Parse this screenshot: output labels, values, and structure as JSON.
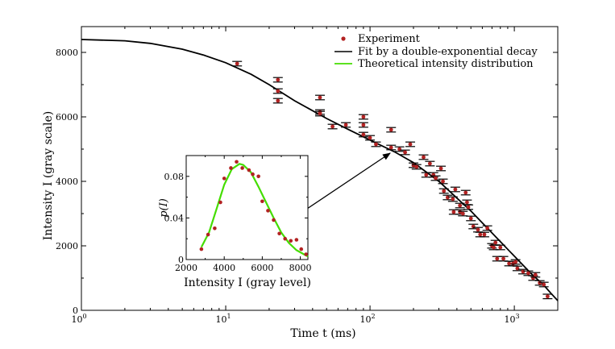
{
  "chart_data": [
    {
      "type": "scatter",
      "xscale": "log",
      "title": "",
      "xlabel": "Time t (ms)",
      "ylabel": "Intensity I (gray scale)",
      "xlim": [
        1,
        2000
      ],
      "ylim": [
        0,
        8800
      ],
      "xticks": [
        {
          "value": 1,
          "base": "10",
          "exp": "0"
        },
        {
          "value": 10,
          "base": "10",
          "exp": "1"
        },
        {
          "value": 100,
          "base": "10",
          "exp": "2"
        },
        {
          "value": 1000,
          "base": "10",
          "exp": "3"
        }
      ],
      "yticks": [
        0,
        2000,
        4000,
        6000,
        8000
      ],
      "legend": {
        "position": "top-right",
        "entries": [
          {
            "label": "Experiment",
            "marker": "dot",
            "color": "#b22222"
          },
          {
            "label": "Fit by a double-exponential decay",
            "marker": "line",
            "color": "#000000"
          },
          {
            "label": "Theoretical intensity distribution",
            "marker": "line",
            "color": "#44dd00"
          }
        ]
      },
      "series": [
        {
          "name": "Experiment",
          "color": "#b22222",
          "error": 70,
          "points": [
            [
              12,
              7650
            ],
            [
              23,
              7150
            ],
            [
              23,
              6800
            ],
            [
              23,
              6500
            ],
            [
              45,
              6600
            ],
            [
              45,
              6150
            ],
            [
              45,
              6100
            ],
            [
              55,
              5700
            ],
            [
              68,
              5750
            ],
            [
              90,
              6000
            ],
            [
              90,
              5750
            ],
            [
              90,
              5450
            ],
            [
              100,
              5350
            ],
            [
              110,
              5150
            ],
            [
              140,
              5600
            ],
            [
              140,
              5050
            ],
            [
              160,
              5000
            ],
            [
              175,
              4900
            ],
            [
              190,
              5150
            ],
            [
              200,
              4500
            ],
            [
              210,
              4450
            ],
            [
              235,
              4750
            ],
            [
              245,
              4200
            ],
            [
              260,
              4550
            ],
            [
              275,
              4200
            ],
            [
              285,
              4100
            ],
            [
              310,
              4400
            ],
            [
              320,
              4000
            ],
            [
              325,
              3700
            ],
            [
              345,
              3500
            ],
            [
              375,
              3450
            ],
            [
              380,
              3050
            ],
            [
              390,
              3750
            ],
            [
              420,
              3250
            ],
            [
              420,
              3050
            ],
            [
              440,
              3000
            ],
            [
              460,
              3650
            ],
            [
              470,
              3350
            ],
            [
              480,
              3200
            ],
            [
              500,
              2850
            ],
            [
              520,
              2600
            ],
            [
              560,
              2500
            ],
            [
              580,
              2350
            ],
            [
              620,
              2350
            ],
            [
              650,
              2550
            ],
            [
              700,
              2000
            ],
            [
              720,
              1950
            ],
            [
              740,
              2100
            ],
            [
              760,
              1600
            ],
            [
              800,
              1950
            ],
            [
              840,
              1600
            ],
            [
              920,
              1450
            ],
            [
              980,
              1450
            ],
            [
              1020,
              1500
            ],
            [
              1050,
              1300
            ],
            [
              1150,
              1200
            ],
            [
              1250,
              1150
            ],
            [
              1350,
              1000
            ],
            [
              1400,
              1100
            ],
            [
              1500,
              850
            ],
            [
              1600,
              800
            ],
            [
              1700,
              430
            ]
          ]
        },
        {
          "name": "Fit by a double-exponential decay",
          "color": "#000000",
          "points": [
            [
              1,
              8400
            ],
            [
              2,
              8360
            ],
            [
              3,
              8280
            ],
            [
              5,
              8100
            ],
            [
              7,
              7920
            ],
            [
              10,
              7680
            ],
            [
              15,
              7320
            ],
            [
              20,
              7000
            ],
            [
              30,
              6500
            ],
            [
              50,
              5950
            ],
            [
              70,
              5620
            ],
            [
              100,
              5280
            ],
            [
              150,
              4900
            ],
            [
              200,
              4580
            ],
            [
              300,
              4000
            ],
            [
              400,
              3480
            ],
            [
              500,
              3080
            ],
            [
              700,
              2400
            ],
            [
              1000,
              1680
            ],
            [
              1300,
              1150
            ],
            [
              1600,
              780
            ],
            [
              1800,
              520
            ],
            [
              2000,
              300
            ]
          ]
        }
      ]
    },
    {
      "type": "scatter",
      "title": "",
      "xlabel": "Intensity I (gray level)",
      "ylabel": "p(I)",
      "xlim": [
        2000,
        8400
      ],
      "ylim": [
        0,
        0.1
      ],
      "xticks": [
        2000,
        4000,
        6000,
        8000
      ],
      "yticks": [
        0,
        0.04,
        0.08
      ],
      "series": [
        {
          "name": "Experiment",
          "color": "#b22222",
          "points": [
            [
              2800,
              0.01
            ],
            [
              3150,
              0.024
            ],
            [
              3500,
              0.03
            ],
            [
              3800,
              0.055
            ],
            [
              4000,
              0.078
            ],
            [
              4350,
              0.088
            ],
            [
              4650,
              0.094
            ],
            [
              4950,
              0.088
            ],
            [
              5300,
              0.086
            ],
            [
              5500,
              0.082
            ],
            [
              5800,
              0.08
            ],
            [
              6000,
              0.056
            ],
            [
              6300,
              0.047
            ],
            [
              6600,
              0.038
            ],
            [
              6900,
              0.025
            ],
            [
              7200,
              0.02
            ],
            [
              7500,
              0.018
            ],
            [
              7800,
              0.019
            ],
            [
              8050,
              0.01
            ],
            [
              8300,
              0.005
            ]
          ]
        },
        {
          "name": "Theoretical intensity distribution",
          "color": "#44dd00",
          "points": [
            [
              2800,
              0.012
            ],
            [
              3200,
              0.026
            ],
            [
              3600,
              0.049
            ],
            [
              4000,
              0.072
            ],
            [
              4400,
              0.087
            ],
            [
              4800,
              0.092
            ],
            [
              5000,
              0.091
            ],
            [
              5400,
              0.084
            ],
            [
              5800,
              0.07
            ],
            [
              6200,
              0.055
            ],
            [
              6600,
              0.04
            ],
            [
              7000,
              0.026
            ],
            [
              7400,
              0.016
            ],
            [
              7800,
              0.009
            ],
            [
              8200,
              0.005
            ],
            [
              8400,
              0.003
            ]
          ]
        }
      ]
    }
  ]
}
